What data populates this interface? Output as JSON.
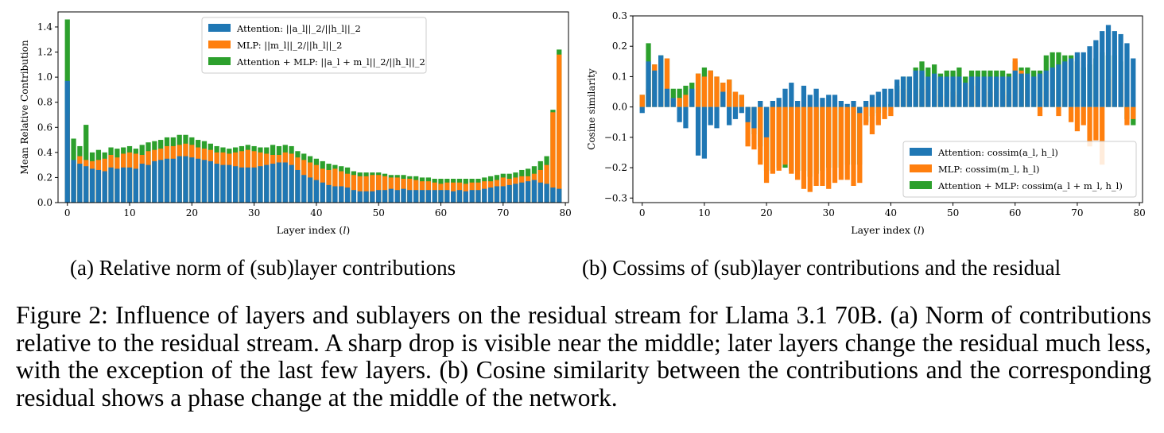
{
  "figure_caption": "Figure 2: Influence of layers and sublayers on the residual stream for Llama 3.1 70B. (a) Norm of contributions relative to the residual stream. A sharp drop is visible near the middle; later layers change the residual much less, with the exception of the last few layers. (b) Cosine similarity between the contributions and the corresponding residual shows a phase change at the middle of the network.",
  "colors": {
    "attention": "#1f77b4",
    "mlp": "#ff7f0e",
    "both": "#2ca02c"
  },
  "chart_data": [
    {
      "panel": "a",
      "type": "bar",
      "subcaption": "(a) Relative norm of (sub)layer contributions",
      "xlabel": "Layer index (l)",
      "ylabel": "Mean Relative Contribution",
      "xlim": [
        -1.5,
        80.5
      ],
      "ylim": [
        0,
        1.52
      ],
      "xticks": [
        0,
        10,
        20,
        30,
        40,
        50,
        60,
        70,
        80
      ],
      "yticks": [
        0.0,
        0.2,
        0.4,
        0.6,
        0.8,
        1.0,
        1.2,
        1.4
      ],
      "ytick_labels": [
        "0.0",
        "0.2",
        "0.4",
        "0.6",
        "0.8",
        "1.0",
        "1.2",
        "1.4"
      ],
      "legend_position": "top-center",
      "x": [
        0,
        1,
        2,
        3,
        4,
        5,
        6,
        7,
        8,
        9,
        10,
        11,
        12,
        13,
        14,
        15,
        16,
        17,
        18,
        19,
        20,
        21,
        22,
        23,
        24,
        25,
        26,
        27,
        28,
        29,
        30,
        31,
        32,
        33,
        34,
        35,
        36,
        37,
        38,
        39,
        40,
        41,
        42,
        43,
        44,
        45,
        46,
        47,
        48,
        49,
        50,
        51,
        52,
        53,
        54,
        55,
        56,
        57,
        58,
        59,
        60,
        61,
        62,
        63,
        64,
        65,
        66,
        67,
        68,
        69,
        70,
        71,
        72,
        73,
        74,
        75,
        76,
        77,
        78,
        79
      ],
      "series": [
        {
          "name": "Attention: ||a_l||_2/||h_l||_2",
          "key": "attention",
          "values": [
            0.97,
            0.34,
            0.31,
            0.29,
            0.27,
            0.26,
            0.25,
            0.28,
            0.27,
            0.28,
            0.28,
            0.27,
            0.31,
            0.3,
            0.33,
            0.34,
            0.35,
            0.35,
            0.37,
            0.37,
            0.36,
            0.35,
            0.34,
            0.33,
            0.31,
            0.3,
            0.3,
            0.29,
            0.28,
            0.28,
            0.28,
            0.29,
            0.3,
            0.31,
            0.32,
            0.32,
            0.3,
            0.26,
            0.22,
            0.2,
            0.18,
            0.16,
            0.14,
            0.13,
            0.13,
            0.12,
            0.1,
            0.09,
            0.09,
            0.09,
            0.1,
            0.1,
            0.11,
            0.1,
            0.11,
            0.1,
            0.1,
            0.1,
            0.1,
            0.1,
            0.1,
            0.1,
            0.09,
            0.1,
            0.09,
            0.1,
            0.1,
            0.11,
            0.12,
            0.13,
            0.13,
            0.14,
            0.15,
            0.16,
            0.17,
            0.18,
            0.16,
            0.15,
            0.12,
            0.11
          ]
        },
        {
          "name": "MLP: ||m_l||_2/||h_l||_2",
          "key": "mlp",
          "values": [
            0.71,
            0.3,
            0.37,
            0.34,
            0.33,
            0.34,
            0.35,
            0.38,
            0.36,
            0.39,
            0.4,
            0.39,
            0.38,
            0.41,
            0.42,
            0.43,
            0.45,
            0.45,
            0.46,
            0.47,
            0.46,
            0.44,
            0.43,
            0.42,
            0.4,
            0.4,
            0.39,
            0.4,
            0.41,
            0.42,
            0.41,
            0.4,
            0.39,
            0.38,
            0.38,
            0.4,
            0.39,
            0.36,
            0.34,
            0.32,
            0.3,
            0.27,
            0.26,
            0.27,
            0.25,
            0.23,
            0.22,
            0.21,
            0.21,
            0.22,
            0.22,
            0.21,
            0.2,
            0.2,
            0.19,
            0.19,
            0.18,
            0.17,
            0.17,
            0.16,
            0.15,
            0.16,
            0.16,
            0.16,
            0.15,
            0.16,
            0.16,
            0.17,
            0.17,
            0.18,
            0.2,
            0.19,
            0.2,
            0.21,
            0.21,
            0.23,
            0.26,
            0.3,
            0.72,
            1.18
          ]
        },
        {
          "name": "Attention + MLP: ||a_l + m_l||_2/||h_l||_2",
          "key": "both",
          "values": [
            1.46,
            0.51,
            0.45,
            0.62,
            0.4,
            0.42,
            0.4,
            0.44,
            0.43,
            0.44,
            0.45,
            0.43,
            0.46,
            0.48,
            0.49,
            0.5,
            0.52,
            0.52,
            0.54,
            0.54,
            0.52,
            0.5,
            0.49,
            0.47,
            0.45,
            0.44,
            0.43,
            0.44,
            0.45,
            0.46,
            0.45,
            0.44,
            0.44,
            0.46,
            0.45,
            0.46,
            0.45,
            0.41,
            0.39,
            0.37,
            0.35,
            0.33,
            0.31,
            0.3,
            0.29,
            0.28,
            0.25,
            0.24,
            0.24,
            0.24,
            0.24,
            0.23,
            0.22,
            0.22,
            0.22,
            0.21,
            0.21,
            0.2,
            0.2,
            0.19,
            0.19,
            0.19,
            0.19,
            0.19,
            0.19,
            0.19,
            0.19,
            0.2,
            0.21,
            0.22,
            0.23,
            0.23,
            0.24,
            0.26,
            0.27,
            0.29,
            0.33,
            0.37,
            0.74,
            1.22
          ]
        }
      ]
    },
    {
      "panel": "b",
      "type": "bar",
      "subcaption": "(b) Cossims of (sub)layer contributions and the residual",
      "xlabel": "Layer index (l)",
      "ylabel": "Cosine similarity",
      "xlim": [
        -1.5,
        80.5
      ],
      "ylim": [
        -0.315,
        0.3
      ],
      "xticks": [
        0,
        10,
        20,
        30,
        40,
        50,
        60,
        70,
        80
      ],
      "yticks": [
        -0.3,
        -0.2,
        -0.1,
        0.0,
        0.1,
        0.2,
        0.3
      ],
      "ytick_labels": [
        "−0.3",
        "−0.2",
        "−0.1",
        "0.0",
        "0.1",
        "0.2",
        "0.3"
      ],
      "legend_position": "bottom-right",
      "x": [
        0,
        1,
        2,
        3,
        4,
        5,
        6,
        7,
        8,
        9,
        10,
        11,
        12,
        13,
        14,
        15,
        16,
        17,
        18,
        19,
        20,
        21,
        22,
        23,
        24,
        25,
        26,
        27,
        28,
        29,
        30,
        31,
        32,
        33,
        34,
        35,
        36,
        37,
        38,
        39,
        40,
        41,
        42,
        43,
        44,
        45,
        46,
        47,
        48,
        49,
        50,
        51,
        52,
        53,
        54,
        55,
        56,
        57,
        58,
        59,
        60,
        61,
        62,
        63,
        64,
        65,
        66,
        67,
        68,
        69,
        70,
        71,
        72,
        73,
        74,
        75,
        76,
        77,
        78,
        79
      ],
      "series": [
        {
          "name": "Attention: cossim(a_l, h_l)",
          "key": "attention",
          "values": [
            -0.02,
            0.15,
            0.12,
            0.17,
            0.06,
            0.03,
            -0.05,
            -0.07,
            0.06,
            -0.16,
            -0.17,
            -0.06,
            -0.07,
            0.05,
            -0.06,
            -0.04,
            -0.02,
            -0.05,
            -0.07,
            0.02,
            -0.1,
            0.02,
            0.03,
            0.06,
            0.08,
            0.02,
            0.07,
            0.04,
            0.06,
            0.03,
            0.04,
            0.04,
            0.02,
            0.01,
            0.02,
            -0.02,
            0.02,
            0.04,
            0.05,
            0.06,
            0.06,
            0.09,
            0.1,
            0.1,
            0.12,
            0.12,
            0.1,
            0.11,
            0.1,
            0.1,
            0.1,
            0.1,
            0.08,
            0.1,
            0.1,
            0.1,
            0.1,
            0.1,
            0.1,
            0.1,
            0.12,
            0.11,
            0.11,
            0.1,
            0.11,
            0.12,
            0.13,
            0.14,
            0.15,
            0.16,
            0.18,
            0.18,
            0.2,
            0.22,
            0.25,
            0.27,
            0.25,
            0.24,
            0.21,
            0.16
          ]
        },
        {
          "name": "MLP: cossim(m_l, h_l)",
          "key": "mlp",
          "values": [
            0.04,
            0.06,
            0.14,
            0.02,
            0.16,
            0.03,
            0.03,
            0.04,
            0.03,
            0.11,
            0.1,
            0.12,
            0.1,
            0.08,
            0.09,
            0.05,
            0.04,
            -0.13,
            -0.14,
            -0.19,
            -0.25,
            -0.22,
            -0.21,
            -0.19,
            -0.22,
            -0.24,
            -0.27,
            -0.28,
            -0.26,
            -0.26,
            -0.27,
            -0.25,
            -0.24,
            -0.24,
            -0.26,
            -0.25,
            -0.06,
            -0.09,
            -0.06,
            -0.04,
            -0.03,
            0.05,
            0.06,
            0.04,
            0.04,
            0.06,
            0.07,
            0.06,
            0.04,
            0.03,
            0.05,
            0.04,
            0.06,
            0.07,
            0.07,
            0.06,
            0.05,
            0.06,
            0.05,
            0.04,
            0.16,
            0.12,
            0.06,
            0.04,
            -0.03,
            0.05,
            0.06,
            -0.03,
            0.03,
            -0.05,
            -0.08,
            -0.06,
            -0.13,
            -0.11,
            -0.19,
            0.09,
            0.1,
            0.08,
            -0.06,
            -0.04
          ]
        },
        {
          "name": "Attention + MLP: cossim(a_l + m_l, h_l)",
          "key": "both",
          "values": [
            0.04,
            0.21,
            0.14,
            0.17,
            0.16,
            0.06,
            0.06,
            0.07,
            0.08,
            0.11,
            0.13,
            0.12,
            0.1,
            0.08,
            0.09,
            0.05,
            0.04,
            -0.04,
            -0.09,
            -0.13,
            -0.21,
            -0.21,
            -0.2,
            -0.2,
            -0.21,
            -0.21,
            -0.21,
            -0.23,
            -0.22,
            -0.21,
            -0.2,
            -0.2,
            -0.2,
            -0.19,
            -0.19,
            -0.19,
            -0.05,
            -0.03,
            -0.02,
            -0.01,
            0.01,
            0.07,
            0.1,
            0.1,
            0.13,
            0.15,
            0.13,
            0.14,
            0.11,
            0.12,
            0.12,
            0.13,
            0.1,
            0.12,
            0.12,
            0.12,
            0.12,
            0.12,
            0.12,
            0.11,
            0.15,
            0.13,
            0.13,
            0.12,
            0.12,
            0.17,
            0.18,
            0.18,
            0.17,
            0.17,
            0.15,
            0.13,
            0.14,
            0.16,
            0.18,
            0.17,
            0.17,
            0.15,
            -0.04,
            -0.06
          ]
        }
      ]
    }
  ]
}
